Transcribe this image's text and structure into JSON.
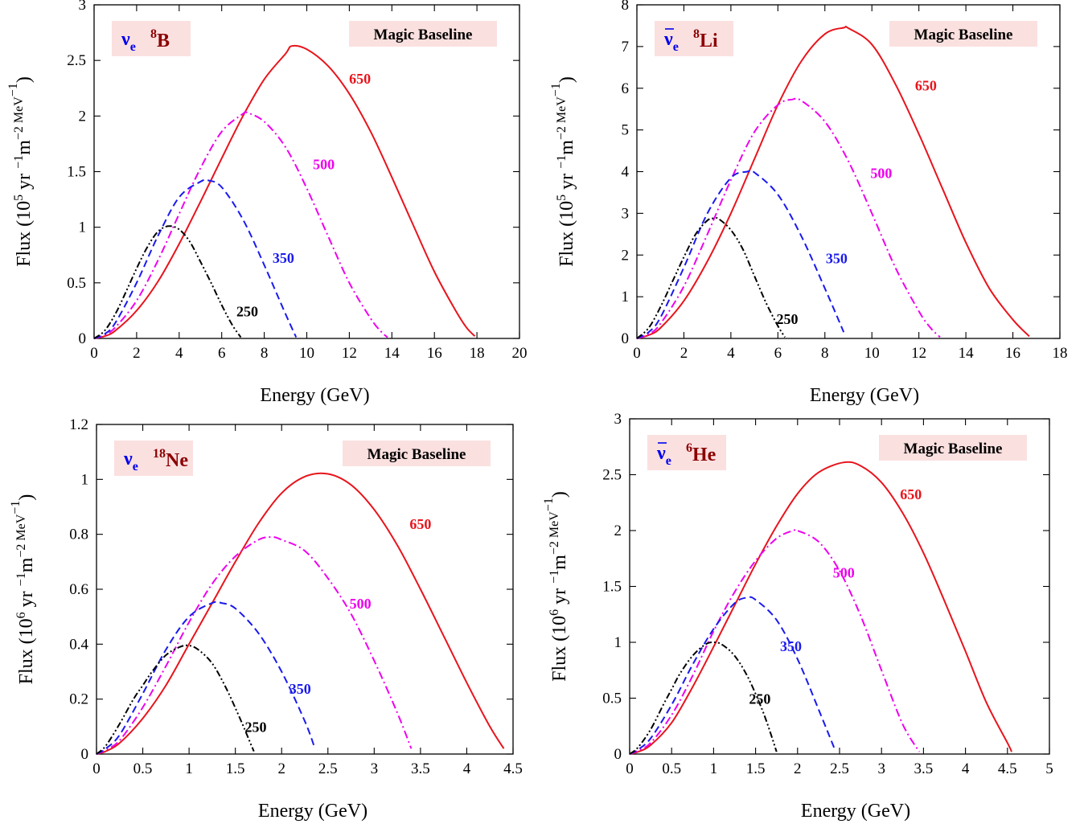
{
  "colors": {
    "s650": "#e8141c",
    "s500": "#ee00ee",
    "s350": "#1a1aee",
    "s250": "#000000",
    "badge_bg": "#fbe0e0",
    "nu": "#0000ee",
    "isotope": "#8b0000"
  },
  "chart_data": [
    {
      "type": "line",
      "panel": "top-left",
      "badge_label": "Magic Baseline",
      "flavor": {
        "symbol": "ν",
        "subscript": "e",
        "bar": false
      },
      "isotope": {
        "mass": "8",
        "element": "B"
      },
      "xlabel": "Energy (GeV)",
      "ylabel": {
        "base": "Flux (10",
        "exp1": "5",
        "mid": " yr ",
        "exp2": "−1",
        "mid2": "m",
        "exp3": "−2",
        "unit": " MeV",
        "exp4": "−1",
        "close": ")"
      },
      "xlim": [
        0,
        20
      ],
      "ylim": [
        0,
        3
      ],
      "xticks": [
        "0",
        "2",
        "4",
        "6",
        "8",
        "10",
        "12",
        "14",
        "16",
        "18",
        "20"
      ],
      "yticks": [
        "0",
        "0.5",
        "1",
        "1.5",
        "2",
        "2.5",
        "3"
      ],
      "series": [
        {
          "name": "650",
          "style": "solid",
          "x": [
            0,
            0.5,
            1,
            2,
            3,
            4,
            5,
            6,
            7,
            8,
            9,
            9.3,
            10,
            11,
            12,
            13,
            14,
            15,
            16,
            17,
            17.5,
            17.9
          ],
          "y": [
            0,
            0.02,
            0.07,
            0.25,
            0.51,
            0.85,
            1.23,
            1.62,
            2.0,
            2.33,
            2.56,
            2.63,
            2.6,
            2.45,
            2.2,
            1.86,
            1.45,
            1.02,
            0.6,
            0.25,
            0.1,
            0.02
          ]
        },
        {
          "name": "500",
          "style": "dashdot",
          "x": [
            0,
            0.5,
            1,
            2,
            3,
            4,
            5,
            6,
            7,
            7.2,
            8,
            9,
            10,
            11,
            12,
            13,
            13.5,
            13.8
          ],
          "y": [
            0,
            0.03,
            0.1,
            0.34,
            0.7,
            1.12,
            1.53,
            1.86,
            2.02,
            2.03,
            1.95,
            1.72,
            1.35,
            0.92,
            0.5,
            0.18,
            0.06,
            0.01
          ]
        },
        {
          "name": "350",
          "style": "dashed",
          "x": [
            0,
            0.5,
            1,
            2,
            3,
            4,
            5,
            5.4,
            6,
            7,
            8,
            9,
            9.5
          ],
          "y": [
            0,
            0.04,
            0.14,
            0.5,
            0.92,
            1.27,
            1.41,
            1.42,
            1.36,
            1.07,
            0.66,
            0.22,
            0.01
          ]
        },
        {
          "name": "250",
          "style": "dashdotdot",
          "x": [
            0,
            0.5,
            1,
            1.5,
            2,
            2.5,
            3,
            3.5,
            4,
            4.5,
            5,
            5.5,
            6,
            6.5,
            6.9
          ],
          "y": [
            0,
            0.07,
            0.22,
            0.42,
            0.63,
            0.82,
            0.96,
            1.01,
            0.98,
            0.87,
            0.69,
            0.5,
            0.3,
            0.12,
            0.01
          ]
        }
      ],
      "labels": [
        {
          "text": "650",
          "series": "650",
          "x": 12.5,
          "y": 2.29
        },
        {
          "text": "500",
          "series": "500",
          "x": 10.8,
          "y": 1.52
        },
        {
          "text": "350",
          "series": "350",
          "x": 8.9,
          "y": 0.68
        },
        {
          "text": "250",
          "series": "250",
          "x": 7.2,
          "y": 0.2
        }
      ]
    },
    {
      "type": "line",
      "panel": "top-right",
      "badge_label": "Magic Baseline",
      "flavor": {
        "symbol": "ν",
        "subscript": "e",
        "bar": true
      },
      "isotope": {
        "mass": "8",
        "element": "Li"
      },
      "xlabel": "Energy (GeV)",
      "ylabel": {
        "base": "Flux (10",
        "exp1": "5",
        "mid": " yr ",
        "exp2": "−1",
        "mid2": "m",
        "exp3": "−2",
        "unit": " MeV",
        "exp4": "−1",
        "close": ")"
      },
      "xlim": [
        0,
        18
      ],
      "ylim": [
        0,
        8
      ],
      "xticks": [
        "0",
        "2",
        "4",
        "6",
        "8",
        "10",
        "12",
        "14",
        "16",
        "18"
      ],
      "yticks": [
        "0",
        "1",
        "2",
        "3",
        "4",
        "5",
        "6",
        "7",
        "8"
      ],
      "series": [
        {
          "name": "650",
          "style": "solid",
          "x": [
            0,
            0.5,
            1,
            2,
            3,
            4,
            5,
            6,
            7,
            8,
            8.8,
            9,
            10,
            11,
            12,
            13,
            14,
            15,
            16,
            16.7
          ],
          "y": [
            0,
            0.08,
            0.25,
            0.9,
            1.85,
            3.0,
            4.3,
            5.6,
            6.65,
            7.3,
            7.45,
            7.44,
            7.05,
            6.1,
            4.9,
            3.6,
            2.3,
            1.2,
            0.45,
            0.05
          ]
        },
        {
          "name": "500",
          "style": "dashdot",
          "x": [
            0,
            0.5,
            1,
            2,
            3,
            4,
            5,
            6,
            6.6,
            7,
            8,
            9,
            10,
            11,
            12,
            12.5,
            12.9
          ],
          "y": [
            0,
            0.1,
            0.35,
            1.25,
            2.5,
            3.8,
            4.95,
            5.6,
            5.73,
            5.7,
            5.2,
            4.25,
            3.0,
            1.7,
            0.65,
            0.25,
            0.03
          ]
        },
        {
          "name": "350",
          "style": "dashed",
          "x": [
            0,
            0.5,
            1,
            2,
            3,
            4,
            4.7,
            5,
            6,
            7,
            8,
            8.5,
            8.8
          ],
          "y": [
            0,
            0.15,
            0.5,
            1.7,
            3.0,
            3.85,
            4.0,
            3.98,
            3.45,
            2.45,
            1.2,
            0.55,
            0.15
          ]
        },
        {
          "name": "250",
          "style": "dashdotdot",
          "x": [
            0,
            0.5,
            1,
            1.5,
            2,
            2.5,
            3,
            3.3,
            3.5,
            4,
            4.5,
            5,
            5.5,
            6,
            6.3
          ],
          "y": [
            0,
            0.25,
            0.75,
            1.35,
            1.95,
            2.5,
            2.83,
            2.88,
            2.86,
            2.6,
            2.15,
            1.5,
            0.85,
            0.3,
            0.03
          ]
        }
      ],
      "labels": [
        {
          "text": "650",
          "series": "650",
          "x": 12.3,
          "y": 5.95
        },
        {
          "text": "500",
          "series": "500",
          "x": 10.4,
          "y": 3.85
        },
        {
          "text": "350",
          "series": "350",
          "x": 8.5,
          "y": 1.8
        },
        {
          "text": "250",
          "series": "250",
          "x": 6.4,
          "y": 0.35
        }
      ]
    },
    {
      "type": "line",
      "panel": "bottom-left",
      "badge_label": "Magic Baseline",
      "flavor": {
        "symbol": "ν",
        "subscript": "e",
        "bar": false
      },
      "isotope": {
        "mass": "18",
        "element": "Ne"
      },
      "xlabel": "Energy (GeV)",
      "ylabel": {
        "base": "Flux (10",
        "exp1": "6",
        "mid": " yr ",
        "exp2": "−1",
        "mid2": "m",
        "exp3": "−2",
        "unit": " MeV",
        "exp4": "−1",
        "close": ")"
      },
      "xlim": [
        0,
        4.5
      ],
      "ylim": [
        0,
        1.2
      ],
      "xticks": [
        "0",
        "0.5",
        "1",
        "1.5",
        "2",
        "2.5",
        "3",
        "3.5",
        "4",
        "4.5"
      ],
      "yticks": [
        "0",
        "0.2",
        "0.4",
        "0.6",
        "0.8",
        "1",
        "1.2"
      ],
      "series": [
        {
          "name": "650",
          "style": "solid",
          "x": [
            0,
            0.1,
            0.25,
            0.5,
            0.75,
            1,
            1.25,
            1.5,
            1.75,
            2,
            2.25,
            2.5,
            2.75,
            3,
            3.25,
            3.5,
            3.75,
            4,
            4.25,
            4.4
          ],
          "y": [
            0,
            0.01,
            0.04,
            0.13,
            0.25,
            0.4,
            0.55,
            0.7,
            0.84,
            0.95,
            1.01,
            1.02,
            0.98,
            0.89,
            0.76,
            0.6,
            0.43,
            0.26,
            0.1,
            0.02
          ]
        },
        {
          "name": "500",
          "style": "dashdot",
          "x": [
            0,
            0.1,
            0.25,
            0.5,
            0.75,
            1,
            1.25,
            1.5,
            1.75,
            1.9,
            2,
            2.25,
            2.5,
            2.75,
            3,
            3.25,
            3.4
          ],
          "y": [
            0,
            0.015,
            0.05,
            0.17,
            0.32,
            0.48,
            0.62,
            0.72,
            0.78,
            0.79,
            0.78,
            0.74,
            0.64,
            0.51,
            0.34,
            0.15,
            0.02
          ]
        },
        {
          "name": "350",
          "style": "dashed",
          "x": [
            0,
            0.1,
            0.25,
            0.5,
            0.75,
            1,
            1.25,
            1.35,
            1.5,
            1.75,
            2,
            2.25,
            2.35
          ],
          "y": [
            0,
            0.02,
            0.07,
            0.22,
            0.38,
            0.5,
            0.55,
            0.55,
            0.53,
            0.44,
            0.3,
            0.12,
            0.03
          ]
        },
        {
          "name": "250",
          "style": "dashdotdot",
          "x": [
            0,
            0.1,
            0.25,
            0.4,
            0.5,
            0.6,
            0.75,
            0.9,
            1,
            1.1,
            1.25,
            1.4,
            1.55,
            1.65,
            1.7
          ],
          "y": [
            0,
            0.03,
            0.11,
            0.2,
            0.25,
            0.3,
            0.36,
            0.39,
            0.395,
            0.38,
            0.33,
            0.24,
            0.13,
            0.05,
            0.01
          ]
        }
      ],
      "labels": [
        {
          "text": "650",
          "series": "650",
          "x": 3.5,
          "y": 0.82
        },
        {
          "text": "500",
          "series": "500",
          "x": 2.85,
          "y": 0.53
        },
        {
          "text": "350",
          "series": "350",
          "x": 2.2,
          "y": 0.22
        },
        {
          "text": "250",
          "series": "250",
          "x": 1.72,
          "y": 0.08
        }
      ]
    },
    {
      "type": "line",
      "panel": "bottom-right",
      "badge_label": "Magic Baseline",
      "flavor": {
        "symbol": "ν",
        "subscript": "e",
        "bar": true
      },
      "isotope": {
        "mass": "6",
        "element": "He"
      },
      "xlabel": "Energy (GeV)",
      "ylabel": {
        "base": "Flux (10",
        "exp1": "6",
        "mid": " yr ",
        "exp2": "−1",
        "mid2": "m",
        "exp3": "−2",
        "unit": " MeV",
        "exp4": "−1",
        "close": ")"
      },
      "xlim": [
        0,
        5
      ],
      "ylim": [
        0,
        3
      ],
      "xticks": [
        "0",
        "0.5",
        "1",
        "1.5",
        "2",
        "2.5",
        "3",
        "3.5",
        "4",
        "4.5",
        "5"
      ],
      "yticks": [
        "0",
        "0.5",
        "1",
        "1.5",
        "2",
        "2.5",
        "3"
      ],
      "series": [
        {
          "name": "650",
          "style": "solid",
          "x": [
            0,
            0.1,
            0.25,
            0.5,
            0.75,
            1,
            1.25,
            1.5,
            1.75,
            2,
            2.25,
            2.55,
            2.75,
            3,
            3.25,
            3.5,
            3.75,
            4,
            4.25,
            4.5,
            4.55
          ],
          "y": [
            0,
            0.02,
            0.08,
            0.28,
            0.6,
            0.96,
            1.33,
            1.7,
            2.04,
            2.33,
            2.52,
            2.61,
            2.58,
            2.43,
            2.16,
            1.8,
            1.37,
            0.92,
            0.46,
            0.1,
            0.02
          ]
        },
        {
          "name": "500",
          "style": "dashdot",
          "x": [
            0,
            0.1,
            0.25,
            0.5,
            0.75,
            1,
            1.25,
            1.5,
            1.75,
            1.95,
            2,
            2.25,
            2.5,
            2.75,
            3,
            3.25,
            3.45
          ],
          "y": [
            0,
            0.03,
            0.1,
            0.35,
            0.7,
            1.1,
            1.45,
            1.73,
            1.93,
            2.0,
            2.0,
            1.9,
            1.64,
            1.24,
            0.75,
            0.27,
            0.02
          ]
        },
        {
          "name": "350",
          "style": "dashed",
          "x": [
            0,
            0.1,
            0.25,
            0.5,
            0.75,
            1,
            1.25,
            1.4,
            1.5,
            1.75,
            2,
            2.25,
            2.45
          ],
          "y": [
            0,
            0.04,
            0.14,
            0.44,
            0.8,
            1.12,
            1.35,
            1.4,
            1.38,
            1.2,
            0.85,
            0.4,
            0.03
          ]
        },
        {
          "name": "250",
          "style": "dashdotdot",
          "x": [
            0,
            0.1,
            0.25,
            0.4,
            0.5,
            0.6,
            0.75,
            0.9,
            1,
            1.1,
            1.25,
            1.4,
            1.55,
            1.65,
            1.75
          ],
          "y": [
            0,
            0.06,
            0.22,
            0.44,
            0.58,
            0.72,
            0.88,
            0.98,
            1.0,
            0.98,
            0.88,
            0.7,
            0.45,
            0.25,
            0.02
          ]
        }
      ],
      "labels": [
        {
          "text": "650",
          "series": "650",
          "x": 3.35,
          "y": 2.28
        },
        {
          "text": "500",
          "series": "500",
          "x": 2.55,
          "y": 1.58
        },
        {
          "text": "350",
          "series": "350",
          "x": 1.92,
          "y": 0.92
        },
        {
          "text": "250",
          "series": "250",
          "x": 1.55,
          "y": 0.45
        }
      ]
    }
  ]
}
